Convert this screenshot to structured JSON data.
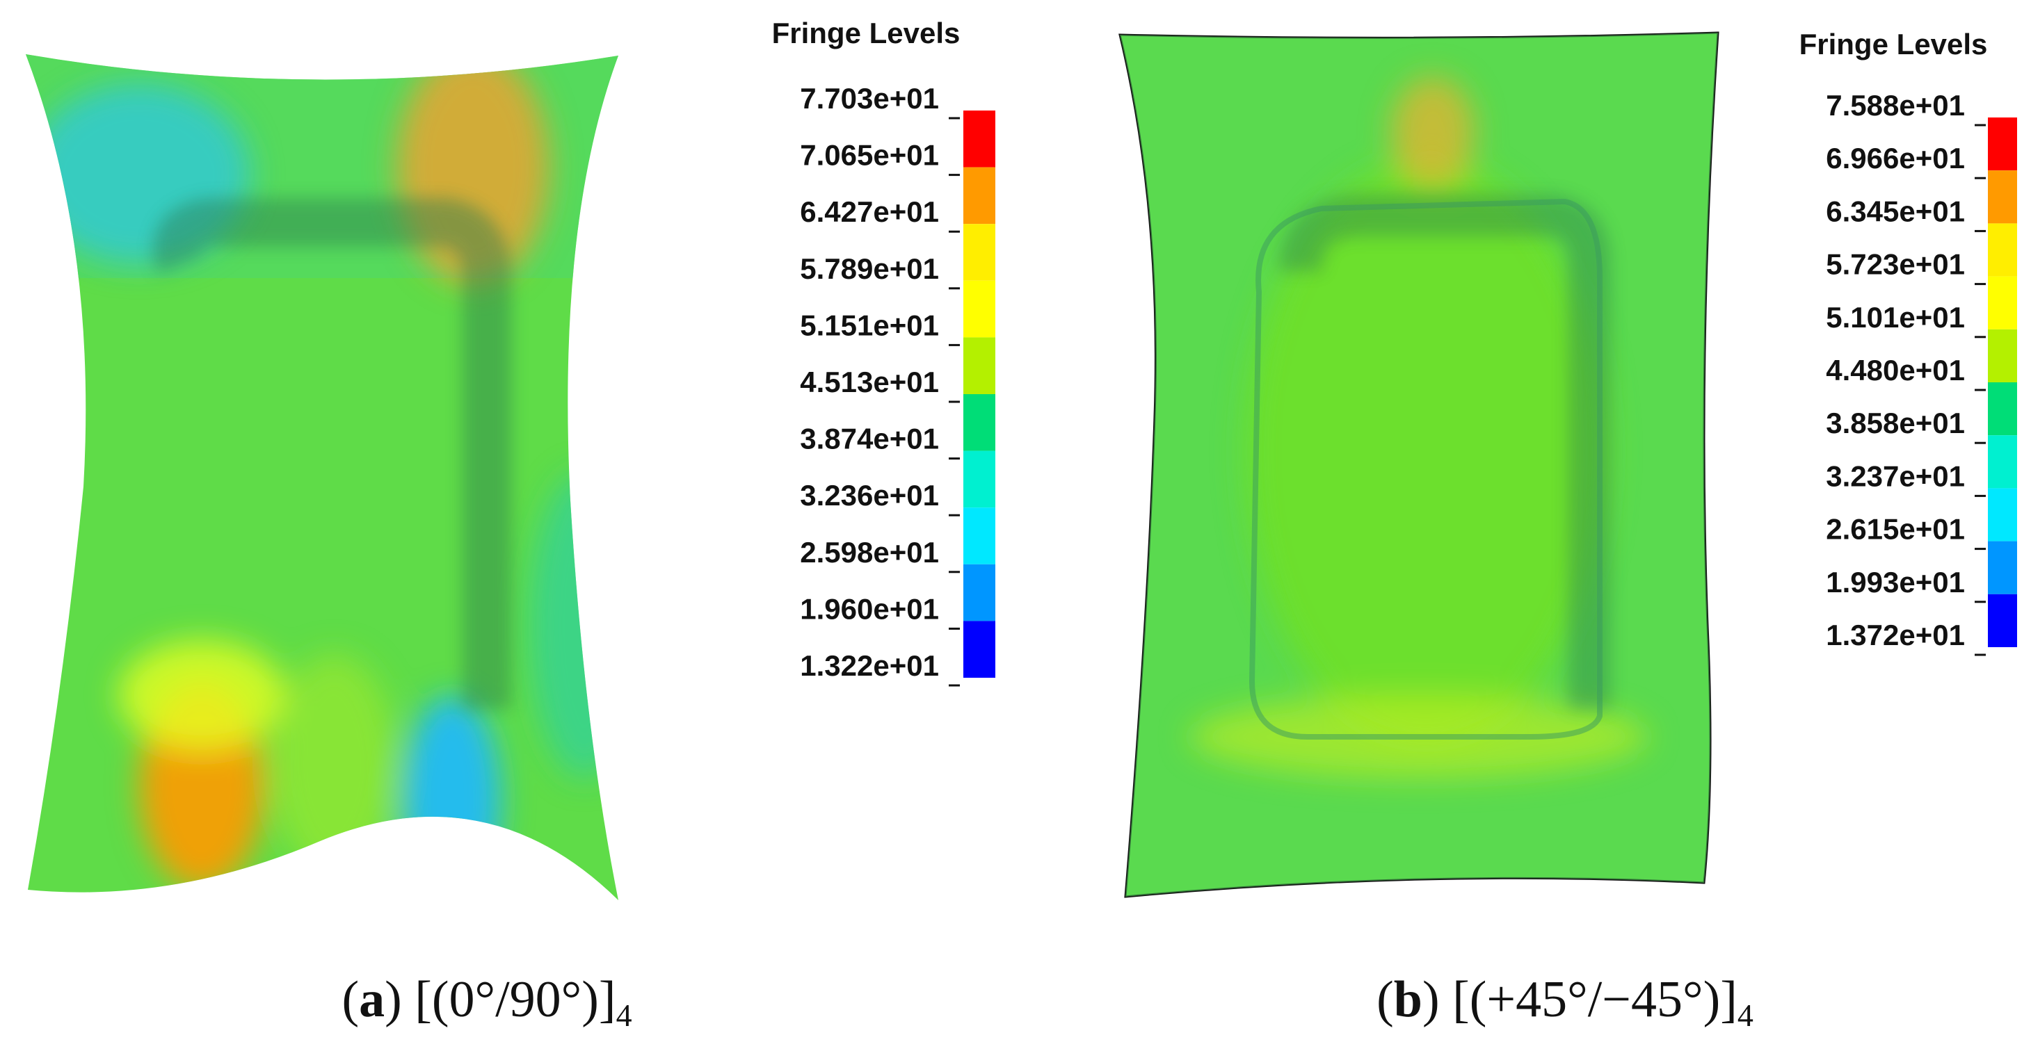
{
  "panels": [
    {
      "legend": {
        "title": "Fringe Levels",
        "levels": [
          "7.703e+01",
          "7.065e+01",
          "6.427e+01",
          "5.789e+01",
          "5.151e+01",
          "4.513e+01",
          "3.874e+01",
          "3.236e+01",
          "2.598e+01",
          "1.960e+01",
          "1.322e+01"
        ]
      },
      "caption": {
        "open": "(",
        "label": "a",
        "text": ") [(0°/90°)]",
        "sub": "4"
      }
    },
    {
      "legend": {
        "title": "Fringe Levels",
        "levels": [
          "7.588e+01",
          "6.966e+01",
          "6.345e+01",
          "5.723e+01",
          "5.101e+01",
          "4.480e+01",
          "3.858e+01",
          "3.237e+01",
          "2.615e+01",
          "1.993e+01",
          "1.372e+01"
        ]
      },
      "caption": {
        "open": "(",
        "label": "b",
        "text": ") [(+45°/−45°)]",
        "sub": "4"
      }
    }
  ]
}
